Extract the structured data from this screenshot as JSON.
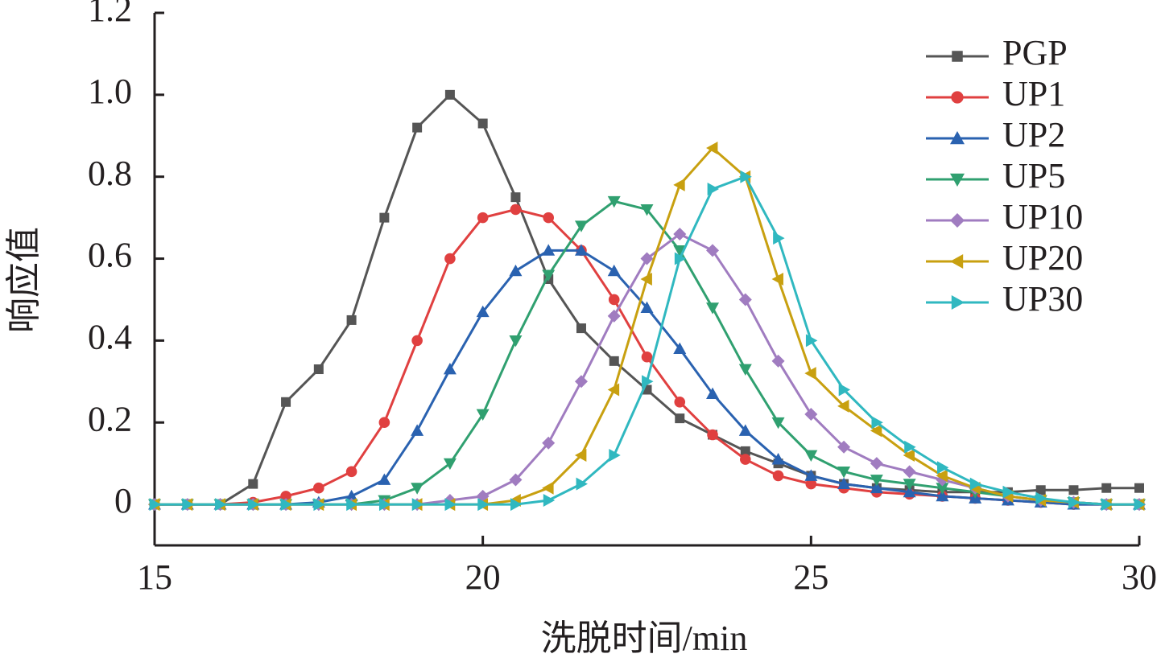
{
  "chart_data": {
    "type": "line",
    "x_label": "洗脱时间/min",
    "y_label": "响应值",
    "x": [
      15,
      15.5,
      16,
      16.5,
      17,
      17.5,
      18,
      18.5,
      19,
      19.5,
      20,
      20.5,
      21,
      21.5,
      22,
      22.5,
      23,
      23.5,
      24,
      24.5,
      25,
      25.5,
      26,
      26.5,
      27,
      27.5,
      28,
      28.5,
      29,
      29.5,
      30
    ],
    "series": [
      {
        "name": "PGP",
        "color": "#555555",
        "marker": "square",
        "values": [
          0,
          0,
          0,
          0.05,
          0.25,
          0.33,
          0.45,
          0.7,
          0.92,
          1.0,
          0.93,
          0.75,
          0.55,
          0.43,
          0.35,
          0.28,
          0.21,
          0.17,
          0.13,
          0.1,
          0.07,
          0.05,
          0.04,
          0.035,
          0.03,
          0.03,
          0.03,
          0.035,
          0.035,
          0.04,
          0.04
        ]
      },
      {
        "name": "UP1",
        "color": "#e04040",
        "marker": "circle",
        "values": [
          0,
          0,
          0,
          0.005,
          0.02,
          0.04,
          0.08,
          0.2,
          0.4,
          0.6,
          0.7,
          0.72,
          0.7,
          0.62,
          0.5,
          0.36,
          0.25,
          0.17,
          0.11,
          0.07,
          0.05,
          0.04,
          0.03,
          0.025,
          0.02,
          0.015,
          0.01,
          0.005,
          0,
          0,
          0
        ]
      },
      {
        "name": "UP2",
        "color": "#2a62b0",
        "marker": "triangle-up",
        "values": [
          0,
          0,
          0,
          0,
          0,
          0.005,
          0.02,
          0.06,
          0.18,
          0.33,
          0.47,
          0.57,
          0.62,
          0.62,
          0.57,
          0.48,
          0.38,
          0.27,
          0.18,
          0.11,
          0.07,
          0.05,
          0.04,
          0.03,
          0.02,
          0.015,
          0.01,
          0.005,
          0,
          0,
          0
        ]
      },
      {
        "name": "UP5",
        "color": "#30a070",
        "marker": "triangle-down",
        "values": [
          0,
          0,
          0,
          0,
          0,
          0,
          0,
          0.01,
          0.04,
          0.1,
          0.22,
          0.4,
          0.56,
          0.68,
          0.74,
          0.72,
          0.62,
          0.48,
          0.33,
          0.2,
          0.12,
          0.08,
          0.06,
          0.05,
          0.04,
          0.03,
          0.02,
          0.01,
          0.005,
          0,
          0
        ]
      },
      {
        "name": "UP10",
        "color": "#a07cc0",
        "marker": "diamond",
        "values": [
          0,
          0,
          0,
          0,
          0,
          0,
          0,
          0,
          0,
          0.01,
          0.02,
          0.06,
          0.15,
          0.3,
          0.46,
          0.6,
          0.66,
          0.62,
          0.5,
          0.35,
          0.22,
          0.14,
          0.1,
          0.08,
          0.06,
          0.04,
          0.02,
          0.01,
          0.005,
          0,
          0
        ]
      },
      {
        "name": "UP20",
        "color": "#c8a010",
        "marker": "triangle-left",
        "values": [
          0,
          0,
          0,
          0,
          0,
          0,
          0,
          0,
          0,
          0,
          0,
          0.01,
          0.04,
          0.12,
          0.28,
          0.55,
          0.78,
          0.87,
          0.8,
          0.55,
          0.32,
          0.24,
          0.18,
          0.12,
          0.07,
          0.04,
          0.02,
          0.01,
          0.005,
          0,
          0
        ]
      },
      {
        "name": "UP30",
        "color": "#30b8c0",
        "marker": "triangle-right",
        "values": [
          0,
          0,
          0,
          0,
          0,
          0,
          0,
          0,
          0,
          0,
          0,
          0,
          0.01,
          0.05,
          0.12,
          0.3,
          0.6,
          0.77,
          0.8,
          0.65,
          0.4,
          0.28,
          0.2,
          0.14,
          0.09,
          0.05,
          0.03,
          0.015,
          0.005,
          0,
          0
        ]
      }
    ],
    "xlim": [
      15,
      30
    ],
    "xticks": [
      15,
      20,
      25,
      30
    ],
    "ylim": [
      -0.1,
      1.2
    ],
    "yticks": [
      0,
      0.2,
      0.4,
      0.6,
      0.8,
      {
        "value": 1,
        "label": "1.0"
      },
      1.2
    ],
    "grid": false,
    "legend": "top-right"
  }
}
